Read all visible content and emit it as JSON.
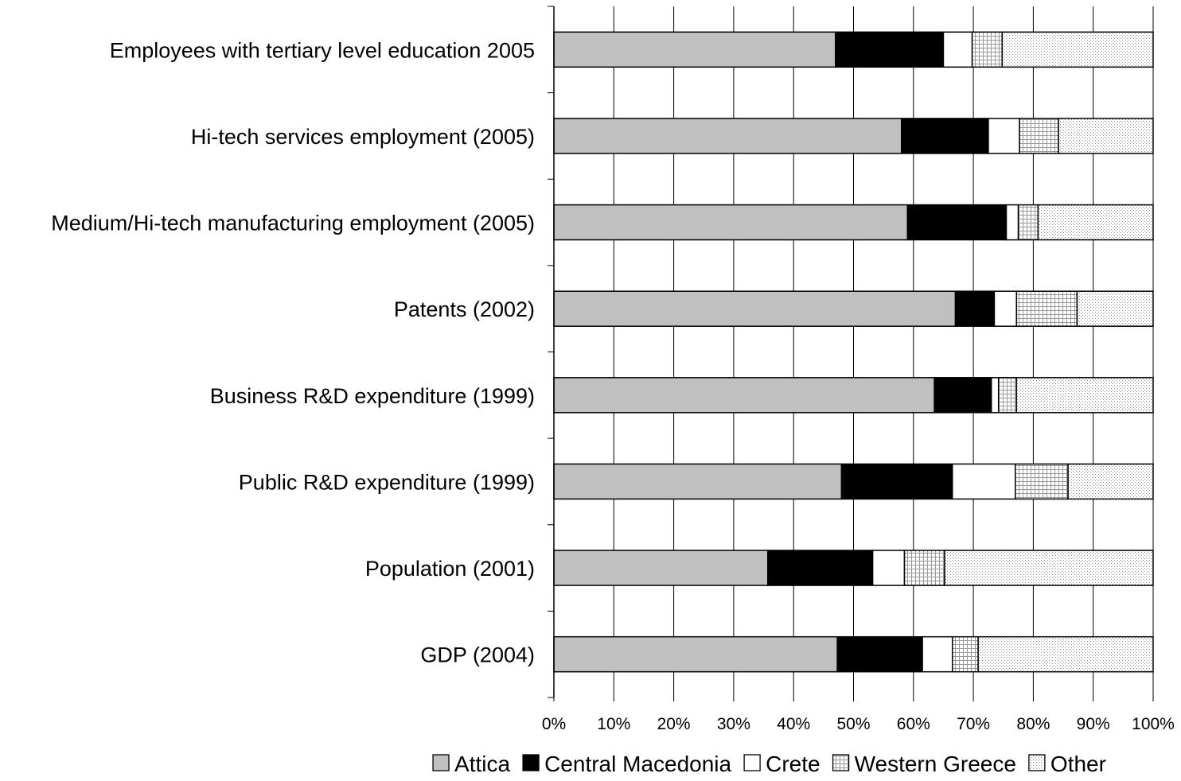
{
  "chart_data": {
    "type": "bar",
    "orientation": "horizontal",
    "stacked": true,
    "percent_scale": true,
    "categories": [
      "Employees with tertiary level education 2005",
      "Hi-tech services employment (2005)",
      "Medium/Hi-tech manufacturing employment (2005)",
      "Patents (2002)",
      "Business R&D expenditure (1999)",
      "Public R&D expenditure (1999)",
      "Population (2001)",
      "GDP (2004)"
    ],
    "series": [
      {
        "name": "Attica",
        "color": "#c0c0c0",
        "pattern": "solid",
        "values": [
          47,
          58,
          59,
          67,
          63.5,
          48,
          35.7,
          47.3
        ]
      },
      {
        "name": "Central Macedonia",
        "color": "#000000",
        "pattern": "solid",
        "values": [
          18,
          14.5,
          16.5,
          6.5,
          9.5,
          18.5,
          17.5,
          14.2
        ]
      },
      {
        "name": "Crete",
        "color": "#ffffff",
        "pattern": "solid",
        "values": [
          4.8,
          5.2,
          2,
          3.7,
          1.2,
          10.5,
          5.3,
          5
        ]
      },
      {
        "name": "Western Greece",
        "color": "#ffffff",
        "pattern": "grid",
        "values": [
          5,
          6.5,
          3.3,
          10.1,
          3,
          8.8,
          6.7,
          4.3
        ]
      },
      {
        "name": "Other",
        "color": "#ffffff",
        "pattern": "dots",
        "values": [
          25.2,
          15.8,
          19.2,
          12.7,
          22.8,
          14.2,
          34.8,
          29.2
        ]
      }
    ],
    "x_ticks": [
      "0%",
      "10%",
      "20%",
      "30%",
      "40%",
      "50%",
      "60%",
      "70%",
      "80%",
      "90%",
      "100%"
    ],
    "xlim": [
      0,
      100
    ],
    "title": "",
    "xlabel": "",
    "ylabel": "",
    "grid": "vertical",
    "legend": "bottom"
  }
}
